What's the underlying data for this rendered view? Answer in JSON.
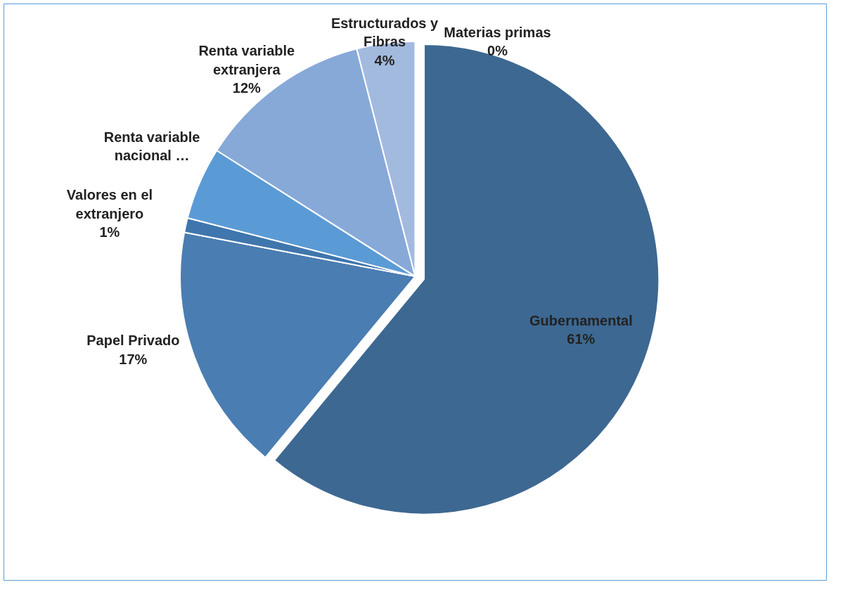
{
  "chart_data": {
    "type": "pie",
    "categories": [
      "Gubernamental",
      "Papel Privado",
      "Valores en el extranjero",
      "Renta variable nacional …",
      "Renta variable extranjera",
      "Estructurados y Fibras",
      "Materias primas"
    ],
    "values": [
      61,
      17,
      1,
      5,
      12,
      4,
      0
    ],
    "value_labels": [
      "61%",
      "17%",
      "1%",
      null,
      "12%",
      "4%",
      "0%"
    ],
    "colors": [
      "#3d6891",
      "#4a7db1",
      "#3f76ad",
      "#5b9bd5",
      "#87a9d8",
      "#a3badf",
      "#c3d3ec"
    ],
    "legend": false
  }
}
